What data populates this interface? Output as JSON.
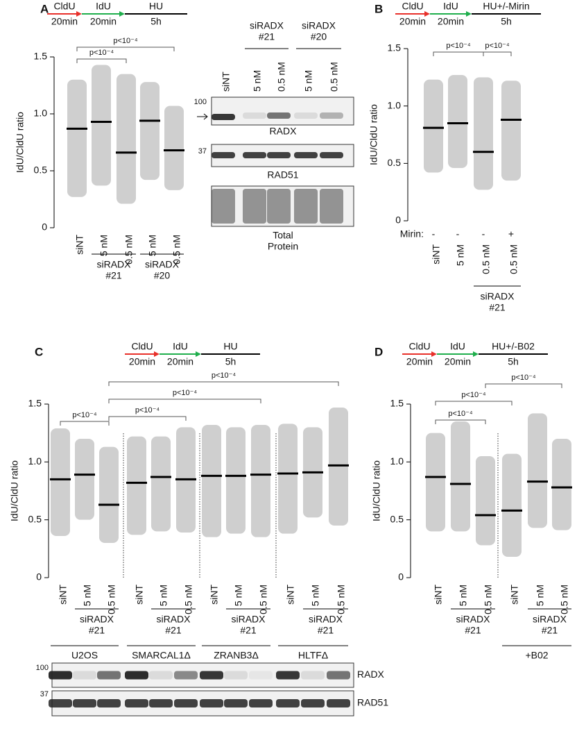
{
  "chart_data": [
    {
      "panel": "A",
      "type": "strip",
      "protocol": [
        {
          "label": "CldU",
          "time": "20min",
          "color": "#e8302a"
        },
        {
          "label": "IdU",
          "time": "20min",
          "color": "#1fae4c"
        },
        {
          "label": "HU",
          "time": "5h",
          "color": "#000000"
        }
      ],
      "y_label": "IdU/CldU ratio",
      "ylim": [
        0,
        1.5
      ],
      "yticks": [
        0,
        0.5,
        {
          "value": 1,
          "label": "1.0"
        },
        1.5
      ],
      "categories": [
        "siNT",
        "5 nM",
        "0.5 nM",
        "5 nM",
        "0.5 nM"
      ],
      "medians": [
        0.87,
        0.93,
        0.66,
        0.94,
        0.68
      ],
      "ranges": [
        [
          0.27,
          1.3
        ],
        [
          0.37,
          1.43
        ],
        [
          0.21,
          1.35
        ],
        [
          0.42,
          1.28
        ],
        [
          0.33,
          1.07
        ]
      ],
      "annotations": [
        "p<10⁻⁴",
        "p<10⁻⁴"
      ],
      "groups": [
        [
          "siRADX",
          "#21"
        ],
        [
          "siRADX",
          "#20"
        ]
      ],
      "color": "#a8a8a8"
    },
    {
      "panel": "B",
      "type": "strip",
      "protocol": [
        {
          "label": "CldU",
          "time": "20min",
          "color": "#e8302a"
        },
        {
          "label": "IdU",
          "time": "20min",
          "color": "#1fae4c"
        },
        {
          "label": "HU+/-Mirin",
          "time": "5h",
          "color": "#000000"
        }
      ],
      "y_label": "IdU/CldU ratio",
      "ylim": [
        0,
        1.5
      ],
      "yticks": [
        0,
        0.5,
        {
          "value": 1,
          "label": "1.0"
        },
        1.5
      ],
      "categories": [
        "siNT",
        "5 nM",
        "0.5 nM",
        "0.5 nM"
      ],
      "treatment_label": "Mirin:",
      "treatment": [
        "-",
        "-",
        "-",
        "+"
      ],
      "medians": [
        0.81,
        0.85,
        0.6,
        0.88
      ],
      "ranges": [
        [
          0.42,
          1.23
        ],
        [
          0.46,
          1.27
        ],
        [
          0.27,
          1.25
        ],
        [
          0.35,
          1.22
        ]
      ],
      "annotations": [
        "p<10⁻⁴",
        "p<10⁻⁴"
      ],
      "groups": [
        [
          "siRADX",
          "#21"
        ]
      ],
      "color": "#a8a8a8"
    },
    {
      "panel": "C",
      "type": "strip",
      "protocol": [
        {
          "label": "CldU",
          "time": "20min",
          "color": "#e8302a"
        },
        {
          "label": "IdU",
          "time": "20min",
          "color": "#1fae4c"
        },
        {
          "label": "HU",
          "time": "5h",
          "color": "#000000"
        }
      ],
      "y_label": "IdU/CldU ratio",
      "ylim": [
        0,
        1.5
      ],
      "yticks": [
        0,
        0.5,
        {
          "value": 1,
          "label": "1.0"
        },
        1.5
      ],
      "categories": [
        "siNT",
        "5 nM",
        "0.5 nM",
        "siNT",
        "5 nM",
        "0.5 nM",
        "siNT",
        "5 nM",
        "0.5 nM",
        "siNT",
        "5 nM",
        "0.5 nM"
      ],
      "medians": [
        0.85,
        0.89,
        0.63,
        0.82,
        0.87,
        0.85,
        0.88,
        0.88,
        0.89,
        0.9,
        0.91,
        0.97
      ],
      "ranges": [
        [
          0.36,
          1.29
        ],
        [
          0.5,
          1.2
        ],
        [
          0.3,
          1.13
        ],
        [
          0.37,
          1.22
        ],
        [
          0.4,
          1.22
        ],
        [
          0.39,
          1.3
        ],
        [
          0.35,
          1.32
        ],
        [
          0.38,
          1.3
        ],
        [
          0.35,
          1.32
        ],
        [
          0.38,
          1.33
        ],
        [
          0.52,
          1.3
        ],
        [
          0.45,
          1.47
        ]
      ],
      "annotations": [
        "p<10⁻⁴",
        "p<10⁻⁴",
        "p<10⁻⁴",
        "p<10⁻⁴"
      ],
      "groups": [
        [
          "siRADX",
          "#21"
        ],
        [
          "siRADX",
          "#21"
        ],
        [
          "siRADX",
          "#21"
        ],
        [
          "siRADX",
          "#21"
        ]
      ],
      "cell_lines": [
        "U2OS",
        "SMARCAL1Δ",
        "ZRANB3Δ",
        "HLTFΔ"
      ],
      "color": "#a8a8a8"
    },
    {
      "panel": "D",
      "type": "strip",
      "protocol": [
        {
          "label": "CldU",
          "time": "20min",
          "color": "#e8302a"
        },
        {
          "label": "IdU",
          "time": "20min",
          "color": "#1fae4c"
        },
        {
          "label": "HU+/-B02",
          "time": "5h",
          "color": "#000000"
        }
      ],
      "y_label": "IdU/CldU ratio",
      "ylim": [
        0,
        1.5
      ],
      "yticks": [
        0,
        0.5,
        {
          "value": 1,
          "label": "1.0"
        },
        1.5
      ],
      "categories": [
        "siNT",
        "5 nM",
        "0.5 nM",
        "siNT",
        "5 nM",
        "0.5 nM"
      ],
      "medians": [
        0.87,
        0.81,
        0.54,
        0.58,
        0.83,
        0.78
      ],
      "ranges": [
        [
          0.4,
          1.25
        ],
        [
          0.4,
          1.35
        ],
        [
          0.28,
          1.05
        ],
        [
          0.18,
          1.07
        ],
        [
          0.43,
          1.42
        ],
        [
          0.41,
          1.2
        ]
      ],
      "annotations": [
        "p<10⁻⁴",
        "p<10⁻⁴",
        "p<10⁻⁴"
      ],
      "groups": [
        [
          "siRADX",
          "#21"
        ],
        [
          "siRADX",
          "#21"
        ]
      ],
      "treatment_group": "+B02",
      "color": "#a8a8a8"
    }
  ],
  "blots": {
    "A": {
      "lanes": [
        "siNT",
        "5 nM",
        "0.5 nM",
        "5 nM",
        "0.5 nM"
      ],
      "headers": [
        [
          "siRADX",
          "#21"
        ],
        [
          "siRADX",
          "#20"
        ]
      ],
      "markers": [
        "100",
        "37"
      ],
      "labels": [
        [
          "RADX"
        ],
        [
          "RAD51"
        ],
        [
          "Total",
          "Protein"
        ]
      ]
    },
    "C": {
      "markers": [
        "100",
        "37"
      ],
      "labels": [
        "RADX",
        "RAD51"
      ]
    }
  }
}
